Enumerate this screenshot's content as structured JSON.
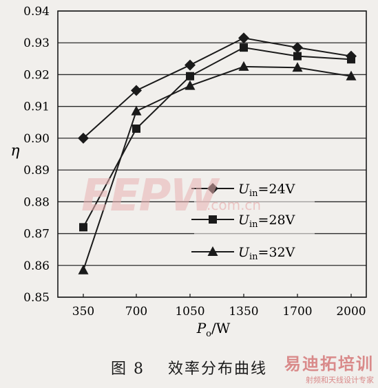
{
  "chart_data": {
    "type": "line",
    "categories": [
      "350",
      "700",
      "1050",
      "1350",
      "1700",
      "2000"
    ],
    "xlabel": "Po/W",
    "xlabel_main": "P",
    "xlabel_sub": "o",
    "xlabel_unit": "/W",
    "ylabel": "η",
    "ylim": [
      0.85,
      0.94
    ],
    "yticks": [
      "0.85",
      "0.86",
      "0.87",
      "0.88",
      "0.89",
      "0.90",
      "0.91",
      "0.92",
      "0.93",
      "0.94"
    ],
    "grid": true,
    "legend_position": "center-right",
    "series": [
      {
        "name": "Uin=24V",
        "name_main": "U",
        "name_sub": "in",
        "name_suffix": "=24V",
        "marker": "diamond",
        "values": [
          0.9,
          0.915,
          0.923,
          0.9315,
          0.9285,
          0.9258
        ]
      },
      {
        "name": "Uin=28V",
        "name_main": "U",
        "name_sub": "in",
        "name_suffix": "=28V",
        "marker": "square",
        "values": [
          0.872,
          0.903,
          0.9195,
          0.9285,
          0.9258,
          0.9248
        ]
      },
      {
        "name": "Uin=32V",
        "name_main": "U",
        "name_sub": "in",
        "name_suffix": "=32V",
        "marker": "triangle",
        "values": [
          0.8585,
          0.9085,
          0.9165,
          0.9225,
          0.9222,
          0.9195
        ]
      }
    ]
  },
  "caption": {
    "number": "图 8",
    "text": "效率分布曲线"
  },
  "watermark": {
    "logo": "EEPW",
    "site": ".com.cn"
  },
  "corner_mark": {
    "title": "易迪拓培训",
    "subtitle": "射频和天线设计专家"
  }
}
